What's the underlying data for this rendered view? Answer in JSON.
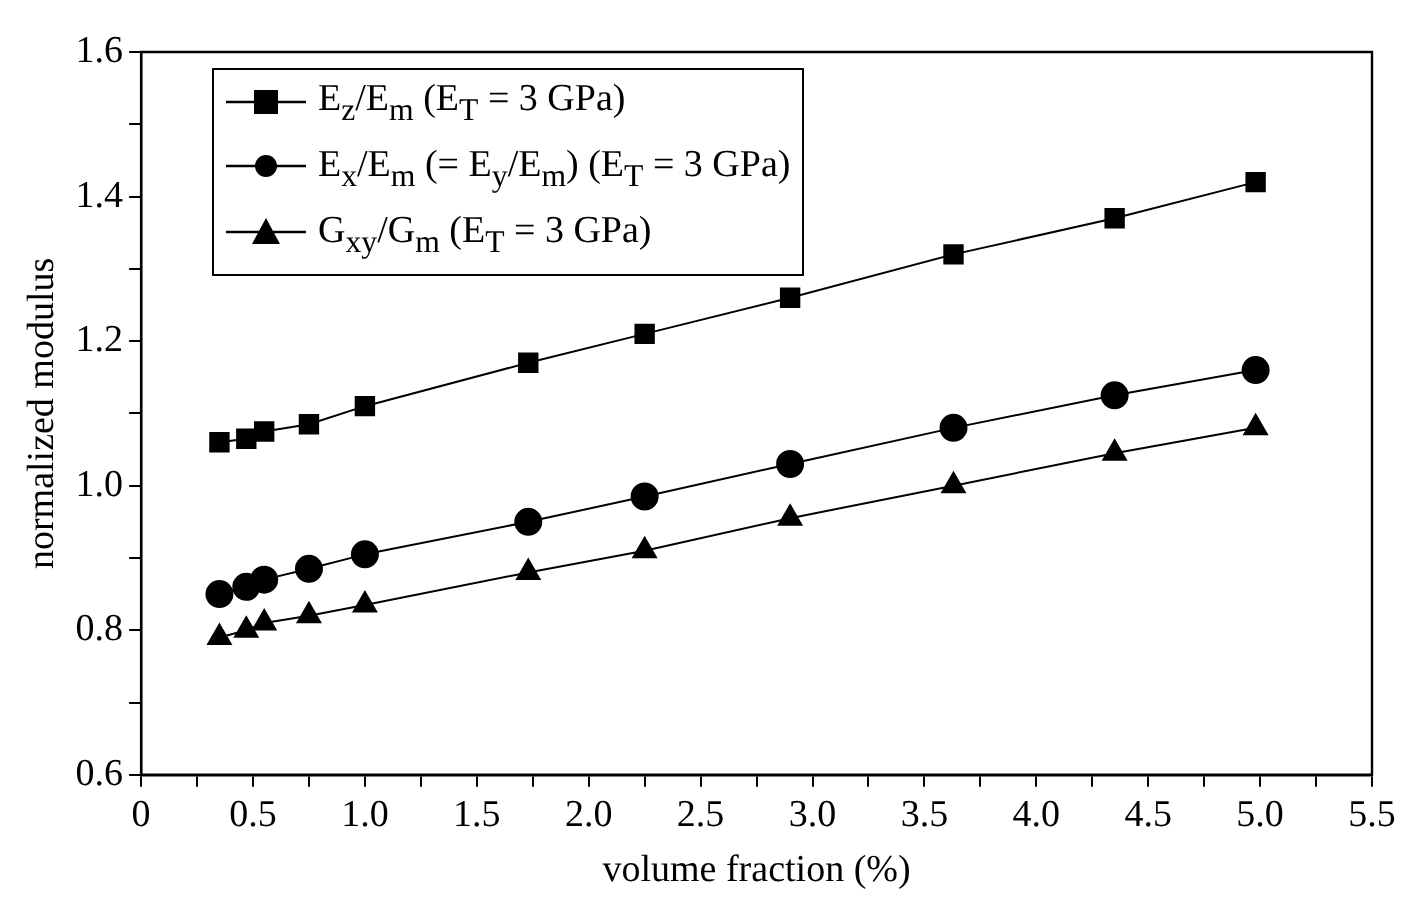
{
  "chart_data": {
    "type": "line",
    "xlabel": "volume fraction (%)",
    "ylabel": "normalized modulus",
    "x": [
      0.35,
      0.47,
      0.55,
      0.75,
      1.0,
      1.73,
      2.25,
      2.9,
      3.63,
      4.35,
      4.98
    ],
    "series": [
      {
        "name": "E$_{z}$/E$_{m}$ (E$_{T}$ = 3 GPa)",
        "color": "#000000",
        "marker": "square",
        "values": [
          1.06,
          1.065,
          1.075,
          1.085,
          1.11,
          1.17,
          1.21,
          1.26,
          1.32,
          1.37,
          1.42
        ]
      },
      {
        "name": "E$_{x}$/E$_{m}$ (= E$_{y}$/E$_{m}$) (E$_{T}$ = 3 GPa)",
        "color": "#000000",
        "marker": "circle",
        "values": [
          0.85,
          0.86,
          0.87,
          0.885,
          0.905,
          0.95,
          0.985,
          1.03,
          1.08,
          1.125,
          1.16
        ]
      },
      {
        "name": "G$_{xy}$/G$_{m}$ (E$_{T}$ = 3 GPa)",
        "color": "#000000",
        "marker": "triangle",
        "values": [
          0.79,
          0.8,
          0.81,
          0.82,
          0.835,
          0.88,
          0.91,
          0.955,
          1.0,
          1.045,
          1.08
        ]
      }
    ],
    "xlim": [
      0,
      5.5
    ],
    "xticks": [
      0,
      {
        "value": 0.25,
        "label": null
      },
      {
        "value": 0.5,
        "label": "0.5"
      },
      {
        "value": 0.75,
        "label": null
      },
      {
        "value": 1,
        "label": "1.0"
      },
      {
        "value": 1.25,
        "label": null
      },
      {
        "value": 1.5,
        "label": "1.5"
      },
      {
        "value": 1.75,
        "label": null
      },
      {
        "value": 2,
        "label": "2.0"
      },
      {
        "value": 2.25,
        "label": null
      },
      {
        "value": 2.5,
        "label": "2.5"
      },
      {
        "value": 2.75,
        "label": null
      },
      {
        "value": 3,
        "label": "3.0"
      },
      {
        "value": 3.25,
        "label": null
      },
      {
        "value": 3.5,
        "label": "3.5"
      },
      {
        "value": 3.75,
        "label": null
      },
      {
        "value": 4,
        "label": "4.0"
      },
      {
        "value": 4.25,
        "label": null
      },
      {
        "value": 4.5,
        "label": "4.5"
      },
      {
        "value": 4.75,
        "label": null
      },
      {
        "value": 5,
        "label": "5.0"
      },
      {
        "value": 5.25,
        "label": null
      },
      {
        "value": 5.5,
        "label": "5.5"
      }
    ],
    "ylim": [
      0.6,
      1.6
    ],
    "yticks": [
      {
        "value": 0.6,
        "label": "0.6"
      },
      {
        "value": 0.7,
        "label": null
      },
      {
        "value": 0.8,
        "label": "0.8"
      },
      {
        "value": 0.9,
        "label": null
      },
      {
        "value": 1,
        "label": "1.0"
      },
      {
        "value": 1.1,
        "label": null
      },
      {
        "value": 1.2,
        "label": "1.2"
      },
      {
        "value": 1.3,
        "label": null
      },
      {
        "value": 1.4,
        "label": "1.4"
      },
      {
        "value": 1.5,
        "label": null
      },
      {
        "value": 1.6,
        "label": "1.6"
      }
    ],
    "grid": false,
    "legend": "top left",
    "line_style": "solid"
  }
}
